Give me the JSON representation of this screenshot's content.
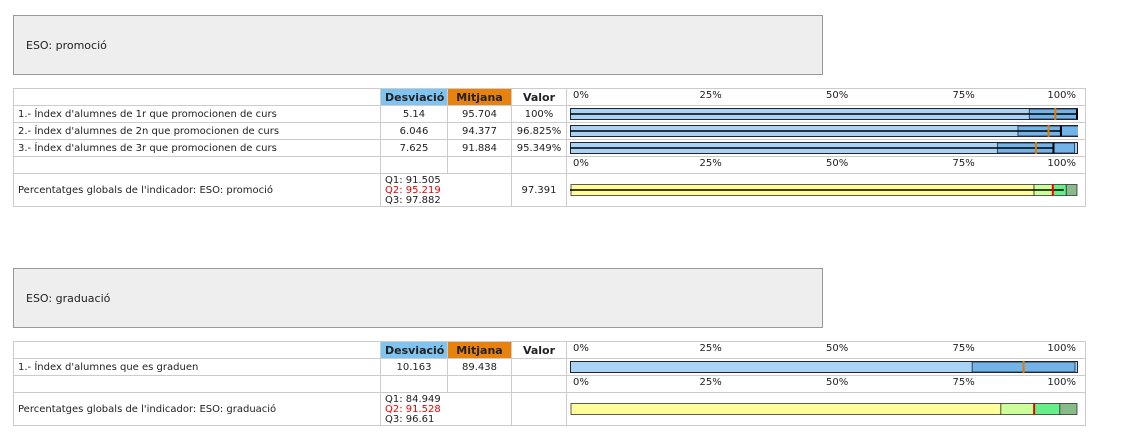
{
  "sections": [
    {
      "title": "ESO: promoció",
      "headers": {
        "desviacio": "Desviació",
        "mitjana": "Mitjana",
        "valor": "Valor"
      },
      "scale": [
        {
          "value": 0,
          "label": "0%"
        },
        {
          "value": 25,
          "label": "25%"
        },
        {
          "value": 50,
          "label": "50%"
        },
        {
          "value": 75,
          "label": "75%"
        },
        {
          "value": 100,
          "label": "100%"
        }
      ],
      "rows": [
        {
          "label": "1.- Índex d'alumnes de 1r que promocionen de curs",
          "desviacio": 5.14,
          "mitjana": 95.704,
          "valor": {
            "value": 100,
            "label": "100%"
          }
        },
        {
          "label": "2.- Índex d'alumnes de 2n que promocionen de curs",
          "desviacio": 6.046,
          "mitjana": 94.377,
          "valor": {
            "value": 96.825,
            "label": "96.825%"
          }
        },
        {
          "label": "3.- Índex d'alumnes de 3r que promocionen de curs",
          "desviacio": 7.625,
          "mitjana": 91.884,
          "valor": {
            "value": 95.349,
            "label": "95.349%"
          }
        }
      ],
      "global": {
        "label": "Percentatges globals de l'indicador: ESO: promoció",
        "q": [
          {
            "value": 91.505,
            "label": "Q1: 91.505"
          },
          {
            "value": 95.219,
            "label": "Q2: 95.219"
          },
          {
            "value": 97.882,
            "label": "Q3: 97.882"
          }
        ],
        "valor": 97.391
      }
    },
    {
      "title": "ESO: graduació",
      "headers": {
        "desviacio": "Desviació",
        "mitjana": "Mitjana",
        "valor": "Valor"
      },
      "scale": [
        {
          "value": 0,
          "label": "0%"
        },
        {
          "value": 25,
          "label": "25%"
        },
        {
          "value": 50,
          "label": "50%"
        },
        {
          "value": 75,
          "label": "75%"
        },
        {
          "value": 100,
          "label": "100%"
        }
      ],
      "rows": [
        {
          "label": "1.- Índex d'alumnes que es graduen",
          "desviacio": 10.163,
          "mitjana": 89.438,
          "valor": null
        }
      ],
      "global": {
        "label": "Percentatges globals de l'indicador: ESO: graduació",
        "q": [
          {
            "value": 84.949,
            "label": "Q1: 84.949"
          },
          {
            "value": 91.528,
            "label": "Q2: 91.528"
          },
          {
            "value": 96.61,
            "label": "Q3: 96.61"
          }
        ],
        "valor": null
      }
    }
  ]
}
